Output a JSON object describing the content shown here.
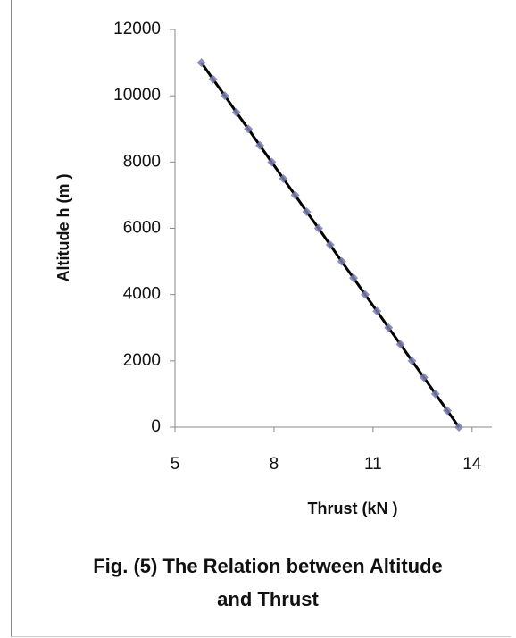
{
  "chart_data": {
    "type": "scatter",
    "title": "Fig. (5) The Relation between Altitude and Thrust",
    "x_label": "Thrust (kN )",
    "y_label": "Altitude h (m )",
    "series": [
      {
        "name": "Altitude",
        "color": "#7b7bb0",
        "line_color": "#000000",
        "x": [
          13.6,
          13.25,
          12.89,
          12.54,
          12.18,
          11.83,
          11.47,
          11.12,
          10.76,
          10.41,
          10.05,
          9.7,
          9.35,
          8.99,
          8.64,
          8.28,
          7.93,
          7.57,
          7.22,
          6.86,
          6.51,
          6.15,
          5.8
        ],
        "values": [
          0,
          500,
          1000,
          1500,
          2000,
          2500,
          3000,
          3500,
          4000,
          4500,
          5000,
          5500,
          6000,
          6500,
          7000,
          7500,
          8000,
          8500,
          9000,
          9500,
          10000,
          10500,
          11000
        ]
      }
    ],
    "line": true,
    "xlim": [
      5,
      14.6
    ],
    "xticks": [
      5,
      8,
      11,
      14
    ],
    "ylim": [
      0,
      12000
    ],
    "yticks": [
      0,
      2000,
      4000,
      6000,
      8000,
      10000,
      12000
    ],
    "grid": false
  }
}
